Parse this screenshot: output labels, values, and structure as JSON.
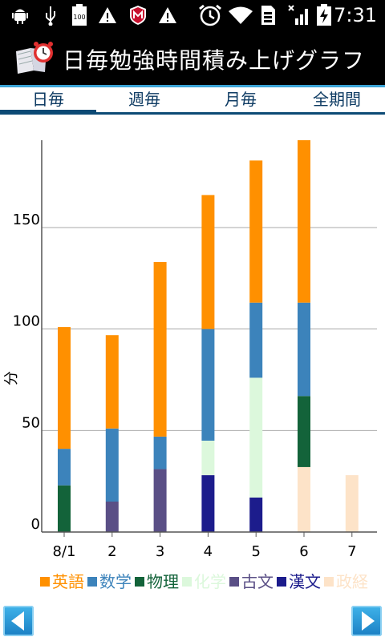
{
  "status_bar": {
    "icons": [
      "android-debug-icon",
      "usb-icon",
      "battery-100-icon",
      "warning-icon",
      "mcafee-icon",
      "warning-icon",
      "alarm-icon",
      "wifi-icon",
      "sim-icon",
      "signal-icon",
      "battery-charging-icon"
    ],
    "battery_label": "100",
    "time": "7:31"
  },
  "app": {
    "title": "日毎勉強時間積み上げグラフ",
    "logo_icon": "book-alarm-icon"
  },
  "tabs": [
    {
      "label": "日毎",
      "active": true
    },
    {
      "label": "週毎",
      "active": false
    },
    {
      "label": "月毎",
      "active": false
    },
    {
      "label": "全期間",
      "active": false
    }
  ],
  "chart_data": {
    "type": "bar",
    "stacked": true,
    "categories": [
      "8/1",
      "2",
      "3",
      "4",
      "5",
      "6",
      "7"
    ],
    "ylabel": "分",
    "yticks": [
      0,
      50,
      100,
      150
    ],
    "ylim": [
      0,
      193
    ],
    "grid": true,
    "legend_position": "bottom",
    "series": [
      {
        "name": "漢文",
        "color": "#1c1c8c",
        "values": [
          0,
          0,
          0,
          28,
          17,
          0,
          0
        ]
      },
      {
        "name": "古文",
        "color": "#5a4f86",
        "values": [
          0,
          15,
          31,
          0,
          0,
          0,
          0
        ]
      },
      {
        "name": "政経",
        "color": "#fde3c8",
        "values": [
          0,
          0,
          0,
          0,
          0,
          32,
          28
        ]
      },
      {
        "name": "物理",
        "color": "#13633a",
        "values": [
          23,
          0,
          0,
          0,
          0,
          35,
          0
        ]
      },
      {
        "name": "化学",
        "color": "#dcf8dc",
        "values": [
          0,
          0,
          0,
          17,
          59,
          0,
          0
        ]
      },
      {
        "name": "数学",
        "color": "#3c83bb",
        "values": [
          18,
          36,
          16,
          55,
          37,
          46,
          0
        ]
      },
      {
        "name": "英語",
        "color": "#ff9000",
        "values": [
          60,
          46,
          86,
          66,
          70,
          80,
          0
        ]
      }
    ]
  },
  "legend": [
    {
      "label": "英語",
      "color": "#ff9000"
    },
    {
      "label": "数学",
      "color": "#3c83bb"
    },
    {
      "label": "物理",
      "color": "#13633a"
    },
    {
      "label": "化学",
      "color": "#dcf8dc"
    },
    {
      "label": "古文",
      "color": "#5a4f86"
    },
    {
      "label": "漢文",
      "color": "#1c1c8c"
    },
    {
      "label": "政経",
      "color": "#fde3c8"
    }
  ],
  "nav": {
    "prev_icon": "arrow-left-icon",
    "next_icon": "arrow-right-icon"
  }
}
